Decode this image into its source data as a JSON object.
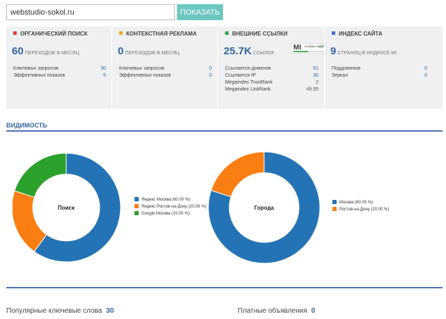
{
  "search": {
    "value": "webstudio-sokol.ru",
    "button_label": "ПОКАЗАТЬ"
  },
  "stats": [
    {
      "title": "ОРГАНИЧЕСКИЙ ПОИСК",
      "color": "#e53935",
      "big_value": "60",
      "big_caption": "ПЕРЕХОДОВ В МЕСЯЦ",
      "rows": [
        {
          "label": "Ключевых запросов",
          "value": "30"
        },
        {
          "label": "Эффективных показов",
          "value": "5"
        }
      ]
    },
    {
      "title": "КОНТЕКСТНАЯ РЕКЛАМА",
      "color": "#f5a623",
      "big_value": "0",
      "big_caption": "ПЕРЕХОДОВ В МЕСЯЦ",
      "rows": [
        {
          "label": "Ключевых запросов",
          "value": "0"
        },
        {
          "label": "Эффективных показов",
          "value": "0"
        }
      ]
    },
    {
      "title": "ВНЕШНИЕ ССЫЛКИ",
      "color": "#2eaa4a",
      "big_value": "25.7K",
      "big_caption": "ССЫЛОК",
      "badge": {
        "logo": "MI",
        "label": "DOMAIN RANK",
        "value": "47",
        "fill": 0.47
      },
      "rows": [
        {
          "label": "Ссылается доменов",
          "value": "61"
        },
        {
          "label": "Ссылается IP",
          "value": "30"
        },
        {
          "label": "Megaindex TrustRank",
          "value": "2"
        },
        {
          "label": "Megaindex LinkRank",
          "value": "49.95"
        }
      ]
    },
    {
      "title": "ИНДЕКС САЙТА",
      "color": "#4a6fd4",
      "big_value": "9",
      "big_caption": "СТРАНИЦ В ИНДЕКСЕ MI",
      "rows": [
        {
          "label": "Поддоменов",
          "value": "0"
        },
        {
          "label": "Зеркал",
          "value": "0"
        }
      ]
    }
  ],
  "visibility": {
    "title": "ВИДИМОСТЬ"
  },
  "chart_data": [
    {
      "type": "pie",
      "center_label": "Поиск",
      "series": [
        {
          "name": "Яндекс Москва (60.00 %)",
          "value": 60,
          "color": "#2474b5"
        },
        {
          "name": "Яндекс Ростов-на-Дону (20.00 %)",
          "value": 20,
          "color": "#fb7e13"
        },
        {
          "name": "Google Москва (20.00 %)",
          "value": 20,
          "color": "#2ca12c"
        }
      ]
    },
    {
      "type": "pie",
      "center_label": "Города",
      "series": [
        {
          "name": "Москва (80.00 %)",
          "value": 80,
          "color": "#2474b5"
        },
        {
          "name": "Ростов-на-Дону (20.00 %)",
          "value": 20,
          "color": "#fb7e13"
        }
      ]
    }
  ],
  "bottom": {
    "keywords_label": "Популярные ключевые слова",
    "keywords_value": "30",
    "ads_label": "Платные объявления",
    "ads_value": "0"
  }
}
